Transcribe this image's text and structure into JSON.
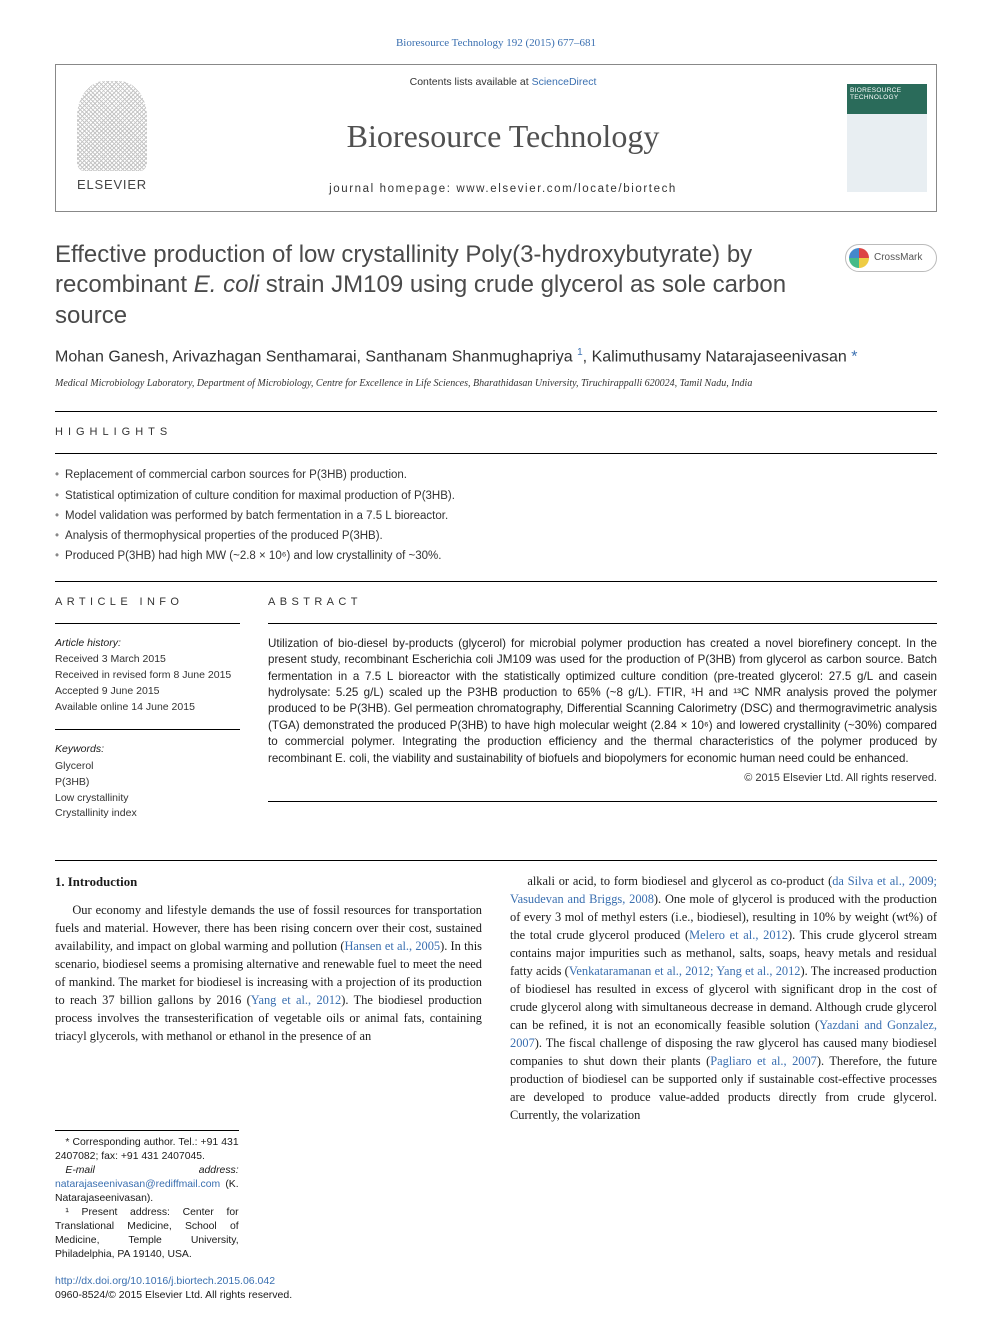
{
  "top_link": {
    "text": "Bioresource Technology 192 (2015) 677–681",
    "href": "#"
  },
  "header": {
    "contents_pre": "Contents lists available at ",
    "contents_link": "ScienceDirect",
    "journal": "Bioresource Technology",
    "homepage": "journal homepage: www.elsevier.com/locate/biortech",
    "elsevier": "ELSEVIER",
    "cover_title": "BIORESOURCE TECHNOLOGY"
  },
  "article": {
    "title_html": "Effective production of low crystallinity Poly(3-hydroxybutyrate) by recombinant <em>E. coli</em> strain JM109 using crude glycerol as sole carbon source",
    "authors_html": "Mohan Ganesh, Arivazhagan Senthamarai, Santhanam Shanmughapriya <sup><a href=\"#\">1</a></sup>, Kalimuthusamy Natarajaseenivasan <a href=\"#\">*</a>",
    "affiliation": "Medical Microbiology Laboratory, Department of Microbiology, Centre for Excellence in Life Sciences, Bharathidasan University, Tiruchirappalli 620024, Tamil Nadu, India",
    "crossmark": "CrossMark"
  },
  "highlights": {
    "heading": "HIGHLIGHTS",
    "items": [
      "Replacement of commercial carbon sources for P(3HB) production.",
      "Statistical optimization of culture condition for maximal production of P(3HB).",
      "Model validation was performed by batch fermentation in a 7.5 L bioreactor.",
      "Analysis of thermophysical properties of the produced P(3HB).",
      "Produced P(3HB) had high MW (~2.8 × 10⁶) and low crystallinity of ~30%."
    ]
  },
  "article_info": {
    "heading": "ARTICLE INFO",
    "history_label": "Article history:",
    "history": [
      "Received 3 March 2015",
      "Received in revised form 8 June 2015",
      "Accepted 9 June 2015",
      "Available online 14 June 2015"
    ],
    "keywords_label": "Keywords:",
    "keywords": [
      "Glycerol",
      "P(3HB)",
      "Low crystallinity",
      "Crystallinity index"
    ]
  },
  "abstract": {
    "heading": "ABSTRACT",
    "text": "Utilization of bio-diesel by-products (glycerol) for microbial polymer production has created a novel biorefinery concept. In the present study, recombinant Escherichia coli JM109 was used for the production of P(3HB) from glycerol as carbon source. Batch fermentation in a 7.5 L bioreactor with the statistically optimized culture condition (pre-treated glycerol: 27.5 g/L and casein hydrolysate: 5.25 g/L) scaled up the P3HB production to 65% (~8 g/L). FTIR, ¹H and ¹³C NMR analysis proved the polymer produced to be P(3HB). Gel permeation chromatography, Differential Scanning Calorimetry (DSC) and thermogravimetric analysis (TGA) demonstrated the produced P(3HB) to have high molecular weight (2.84 × 10⁶) and lowered crystallinity (~30%) compared to commercial polymer. Integrating the production efficiency and the thermal characteristics of the polymer produced by recombinant E. coli, the viability and sustainability of biofuels and biopolymers for economic human need could be enhanced.",
    "copyright": "© 2015 Elsevier Ltd. All rights reserved."
  },
  "intro": {
    "heading": "1. Introduction",
    "para1_html": "Our economy and lifestyle demands the use of fossil resources for transportation fuels and material. However, there has been rising concern over their cost, sustained availability, and impact on global warming and pollution (<a href=\"#\">Hansen et al., 2005</a>). In this scenario, biodiesel seems a promising alternative and renewable fuel to meet the need of mankind. The market for biodiesel is increasing with a projection of its production to reach 37 billion gallons by 2016 (<a href=\"#\">Yang et al., 2012</a>). The biodiesel production process involves the transesterification of vegetable oils or animal fats, containing triacyl glycerols, with methanol or ethanol in the presence of an",
    "para2_html": "alkali or acid, to form biodiesel and glycerol as co-product (<a href=\"#\">da Silva et al., 2009; Vasudevan and Briggs, 2008</a>). One mole of glycerol is produced with the production of every 3 mol of methyl esters (i.e., biodiesel), resulting in 10% by weight (wt%) of the total crude glycerol produced (<a href=\"#\">Melero et al., 2012</a>). This crude glycerol stream contains major impurities such as methanol, salts, soaps, heavy metals and residual fatty acids (<a href=\"#\">Venkataramanan et al., 2012; Yang et al., 2012</a>). The increased production of biodiesel has resulted in excess of glycerol with significant drop in the cost of crude glycerol along with simultaneous decrease in demand. Although crude glycerol can be refined, it is not an economically feasible solution (<a href=\"#\">Yazdani and Gonzalez, 2007</a>). The fiscal challenge of disposing the raw glycerol has caused many biodiesel companies to shut down their plants (<a href=\"#\">Pagliaro et al., 2007</a>). Therefore, the future production of biodiesel can be supported only if sustainable cost-effective processes are developed to produce value-added products directly from crude glycerol. Currently, the volarization"
  },
  "footnotes": {
    "corr": "* Corresponding author. Tel.: +91 431 2407082; fax: +91 431 2407045.",
    "email_label": "E-mail address: ",
    "email": "natarajaseenivasan@rediffmail.com",
    "email_suffix": " (K. Natarajaseenivasan).",
    "present": "¹ Present address: Center for Translational Medicine, School of Medicine, Temple University, Philadelphia, PA 19140, USA."
  },
  "doi": {
    "link": "http://dx.doi.org/10.1016/j.biortech.2015.06.042",
    "issn_line": "0960-8524/© 2015 Elsevier Ltd. All rights reserved."
  },
  "colors": {
    "link": "#3a6fb0",
    "heading_gray": "#4a4a4a",
    "text": "#1a1a1a"
  }
}
